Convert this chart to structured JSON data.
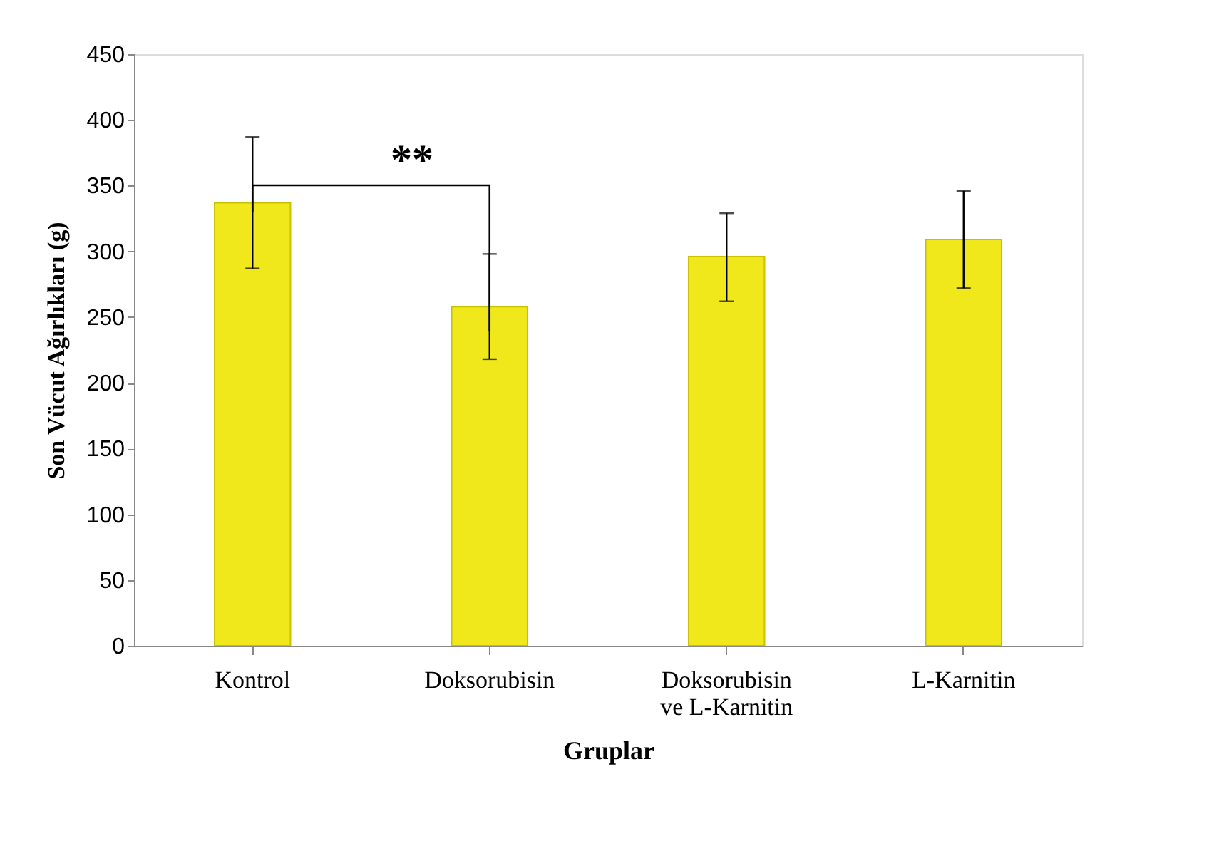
{
  "chart_data": {
    "type": "bar",
    "xlabel": "Gruplar",
    "ylabel": "Son Vücut Ağırlıkları (g)",
    "categories": [
      "Kontrol",
      "Doksorubisin",
      "Doksorubisin ve L-Karnitin",
      "L-Karnitin"
    ],
    "values": [
      337,
      258,
      296,
      309
    ],
    "errors": [
      [
        287,
        387
      ],
      [
        218,
        298
      ],
      [
        262,
        329
      ],
      [
        272,
        346
      ]
    ],
    "color": "#f0e81a",
    "ylim": [
      0,
      450
    ],
    "yticks": [
      0,
      50,
      100,
      150,
      200,
      250,
      300,
      350,
      400,
      450
    ],
    "grid": false,
    "annotations": [
      "**"
    ]
  }
}
